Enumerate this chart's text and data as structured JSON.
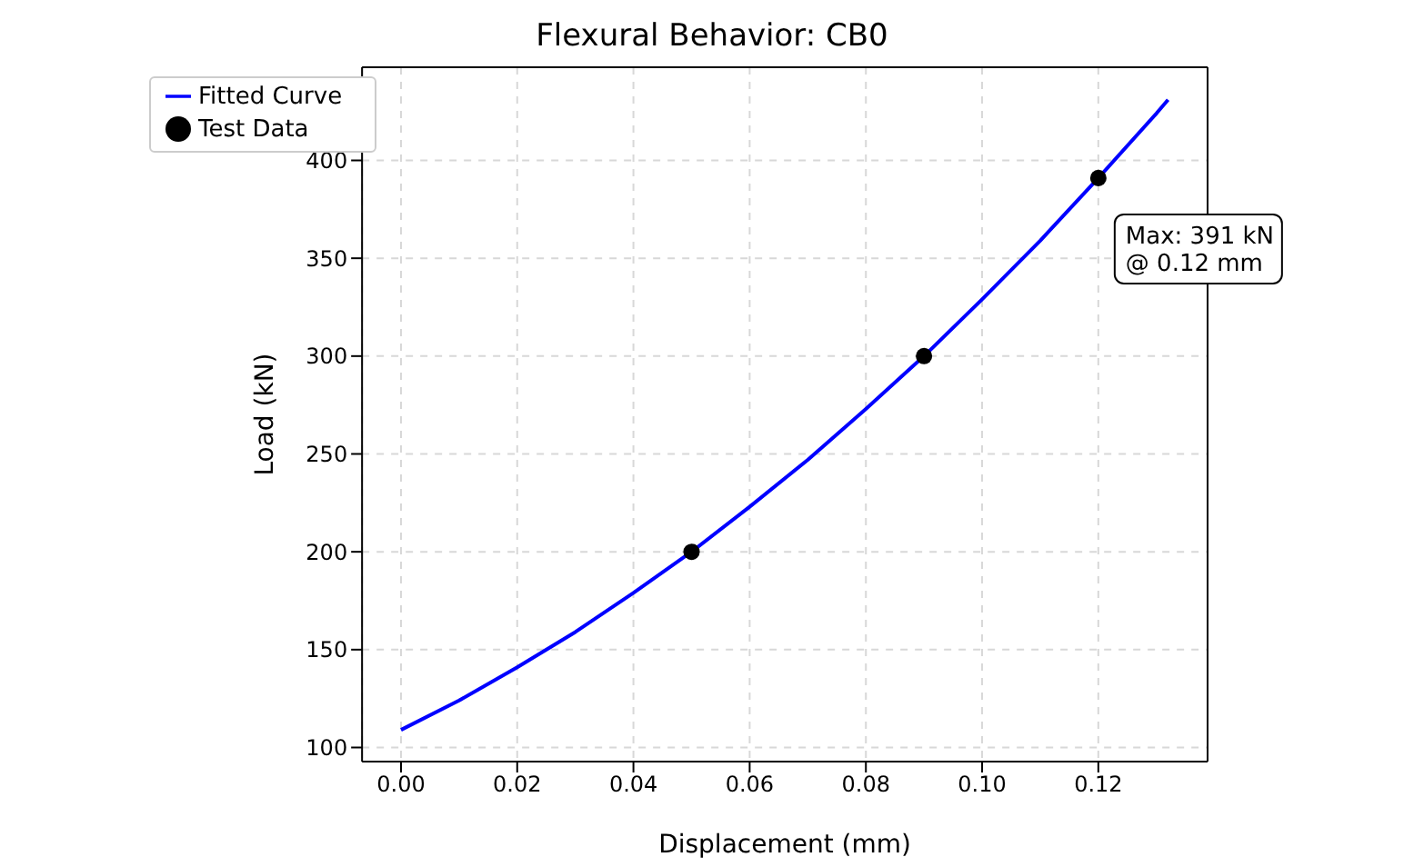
{
  "chart_data": {
    "type": "line",
    "title": "Flexural Behavior: CB0",
    "xlabel": "Displacement (mm)",
    "ylabel": "Load (kN)",
    "xlim": [
      -0.0067,
      0.1388
    ],
    "ylim": [
      92.8,
      447.6
    ],
    "xticks": [
      {
        "value": 0,
        "label": "0.00"
      },
      {
        "value": 0.02,
        "label": "0.02"
      },
      {
        "value": 0.04,
        "label": "0.04"
      },
      {
        "value": 0.06,
        "label": "0.06"
      },
      {
        "value": 0.08,
        "label": "0.08"
      },
      {
        "value": 0.1,
        "label": "0.10"
      },
      {
        "value": 0.12,
        "label": "0.12"
      }
    ],
    "yticks": [
      100,
      150,
      200,
      250,
      300,
      350,
      400
    ],
    "grid": true,
    "legend": "top left",
    "series": [
      {
        "name": "Fitted Curve",
        "type": "line",
        "color": "#0000ff",
        "marker": "none",
        "x": [
          0,
          0.01,
          0.02,
          0.03,
          0.04,
          0.05,
          0.06,
          0.07,
          0.08,
          0.09,
          0.1,
          0.11,
          0.12,
          0.13,
          0.132
        ],
        "values": [
          109,
          124,
          141,
          159,
          179,
          200,
          223,
          247,
          273,
          300,
          329,
          359,
          391,
          424,
          431
        ]
      },
      {
        "name": "Test Data",
        "type": "scatter",
        "color": "#000000",
        "marker": "circle",
        "x": [
          0.05,
          0.09,
          0.12
        ],
        "values": [
          200,
          300,
          391
        ]
      }
    ],
    "annotations": [
      {
        "text": "Max: 391 kN\n@ 0.12 mm",
        "x": 0.12,
        "y": 391
      }
    ]
  }
}
